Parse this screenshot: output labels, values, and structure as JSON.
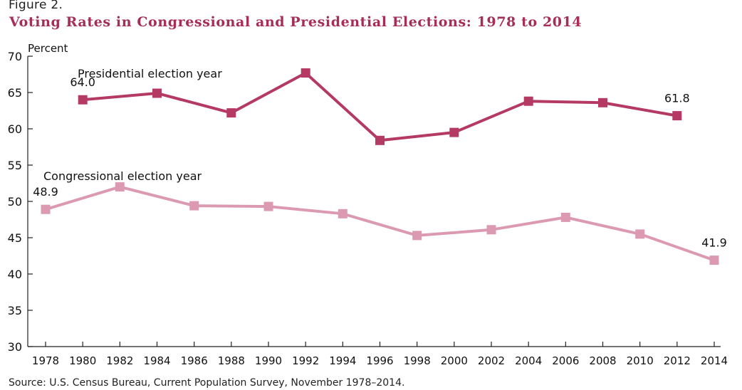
{
  "figure_label": "Figure 2.",
  "source": "Source: U.S. Census Bureau, Current Population Survey, November 1978–2014.",
  "colors": {
    "title": "#a52d57",
    "presidential": "#b43a64",
    "congressional": "#dc9ab2",
    "axis": "#222222"
  },
  "chart_data": {
    "type": "line",
    "title": "Voting Rates in Congressional and Presidential Elections: 1978 to 2014",
    "ylabel": "Percent",
    "xlabel": "",
    "ylim": [
      30,
      70
    ],
    "yticks": [
      30,
      35,
      40,
      45,
      50,
      55,
      60,
      65,
      70
    ],
    "x": [
      1978,
      1980,
      1982,
      1984,
      1986,
      1988,
      1990,
      1992,
      1994,
      1996,
      1998,
      2000,
      2002,
      2004,
      2006,
      2008,
      2010,
      2012,
      2014
    ],
    "grid": false,
    "series": [
      {
        "name": "Presidential election year",
        "key": "presidential",
        "x": [
          1980,
          1984,
          1988,
          1992,
          1996,
          2000,
          2004,
          2008,
          2012
        ],
        "values": [
          64.0,
          64.9,
          62.2,
          67.7,
          58.4,
          59.5,
          63.8,
          63.6,
          61.8
        ],
        "labels": [
          {
            "x": 1980,
            "text": "64.0"
          },
          {
            "x": 2012,
            "text": "61.8"
          }
        ]
      },
      {
        "name": "Congressional election year",
        "key": "congressional",
        "x": [
          1978,
          1982,
          1986,
          1990,
          1994,
          1998,
          2002,
          2006,
          2010,
          2014
        ],
        "values": [
          48.9,
          52.0,
          49.4,
          49.3,
          48.3,
          45.3,
          46.1,
          47.8,
          45.5,
          41.9
        ],
        "labels": [
          {
            "x": 1978,
            "text": "48.9"
          },
          {
            "x": 2014,
            "text": "41.9"
          }
        ]
      }
    ]
  }
}
